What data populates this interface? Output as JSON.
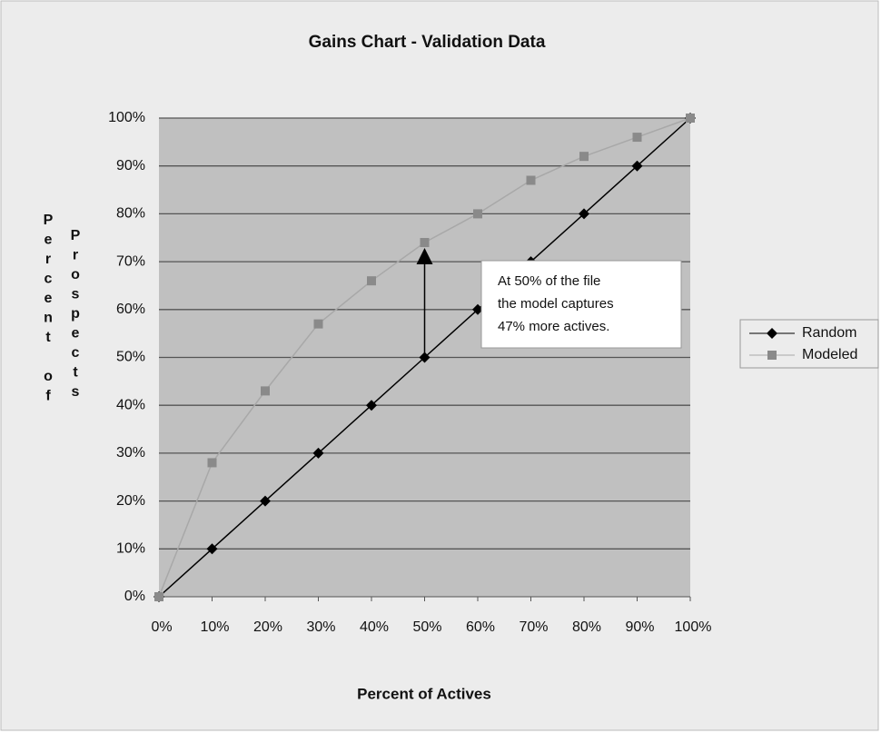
{
  "chart_data": {
    "type": "line",
    "title": "Gains Chart - Validation Data",
    "xlabel": "Percent of Actives",
    "ylabel": [
      "Percent of",
      "Prospects"
    ],
    "x": [
      0,
      10,
      20,
      30,
      40,
      50,
      60,
      70,
      80,
      90,
      100
    ],
    "series": [
      {
        "name": "Random",
        "color": "#000000",
        "marker": "diamond",
        "values": [
          0,
          10,
          20,
          30,
          40,
          50,
          60,
          70,
          80,
          90,
          100
        ]
      },
      {
        "name": "Modeled",
        "color": "#8a8a8a",
        "marker": "square",
        "values": [
          0,
          28,
          43,
          57,
          66,
          74,
          80,
          87,
          92,
          96,
          100
        ]
      }
    ],
    "xlim": [
      0,
      100
    ],
    "ylim": [
      0,
      100
    ],
    "xticks": [
      {
        "value": 0,
        "label": "0%"
      },
      {
        "value": 10,
        "label": "10%"
      },
      {
        "value": 20,
        "label": "20%"
      },
      {
        "value": 30,
        "label": "30%"
      },
      {
        "value": 40,
        "label": "40%"
      },
      {
        "value": 50,
        "label": "50%"
      },
      {
        "value": 60,
        "label": "60%"
      },
      {
        "value": 70,
        "label": "70%"
      },
      {
        "value": 80,
        "label": "80%"
      },
      {
        "value": 90,
        "label": "90%"
      },
      {
        "value": 100,
        "label": "100%"
      }
    ],
    "yticks": [
      {
        "value": 0,
        "label": "0%"
      },
      {
        "value": 10,
        "label": "10%"
      },
      {
        "value": 20,
        "label": "20%"
      },
      {
        "value": 30,
        "label": "30%"
      },
      {
        "value": 40,
        "label": "40%"
      },
      {
        "value": 50,
        "label": "50%"
      },
      {
        "value": 60,
        "label": "60%"
      },
      {
        "value": 70,
        "label": "70%"
      },
      {
        "value": 80,
        "label": "80%"
      },
      {
        "value": 90,
        "label": "90%"
      },
      {
        "value": 100,
        "label": "100%"
      }
    ],
    "grid": true,
    "legend": "right",
    "annotation": [
      "At 50% of the file",
      "the model captures",
      "47% more actives."
    ]
  }
}
